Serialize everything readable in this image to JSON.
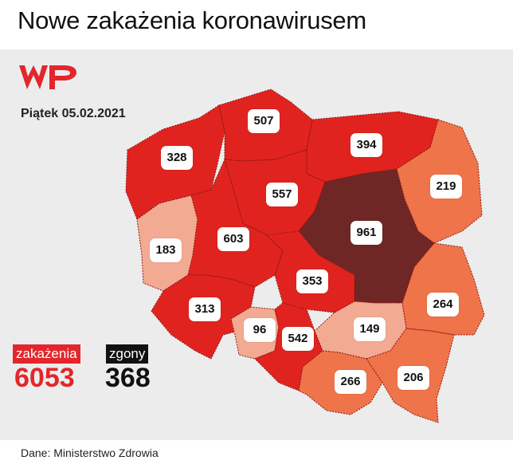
{
  "title": "Nowe zakażenia koronawirusem",
  "date": "Piątek 05.02.2021",
  "brand": "WP",
  "colors": {
    "low": "#f3aa92",
    "medium": "#ef7449",
    "high": "#e1231f",
    "highest": "#6e2724",
    "accent": "#e3262b"
  },
  "regions": [
    {
      "value": "507",
      "level": "high"
    },
    {
      "value": "394",
      "level": "high"
    },
    {
      "value": "328",
      "level": "high"
    },
    {
      "value": "557",
      "level": "high"
    },
    {
      "value": "219",
      "level": "medium"
    },
    {
      "value": "961",
      "level": "highest"
    },
    {
      "value": "183",
      "level": "low"
    },
    {
      "value": "603",
      "level": "high"
    },
    {
      "value": "353",
      "level": "high"
    },
    {
      "value": "313",
      "level": "high"
    },
    {
      "value": "264",
      "level": "medium"
    },
    {
      "value": "96",
      "level": "low"
    },
    {
      "value": "542",
      "level": "high"
    },
    {
      "value": "149",
      "level": "low"
    },
    {
      "value": "266",
      "level": "medium"
    },
    {
      "value": "206",
      "level": "medium"
    }
  ],
  "stats": {
    "cases_label": "zakażenia",
    "cases_value": "6053",
    "deaths_label": "zgony",
    "deaths_value": "368"
  },
  "source": "Dane: Ministerstwo Zdrowia"
}
